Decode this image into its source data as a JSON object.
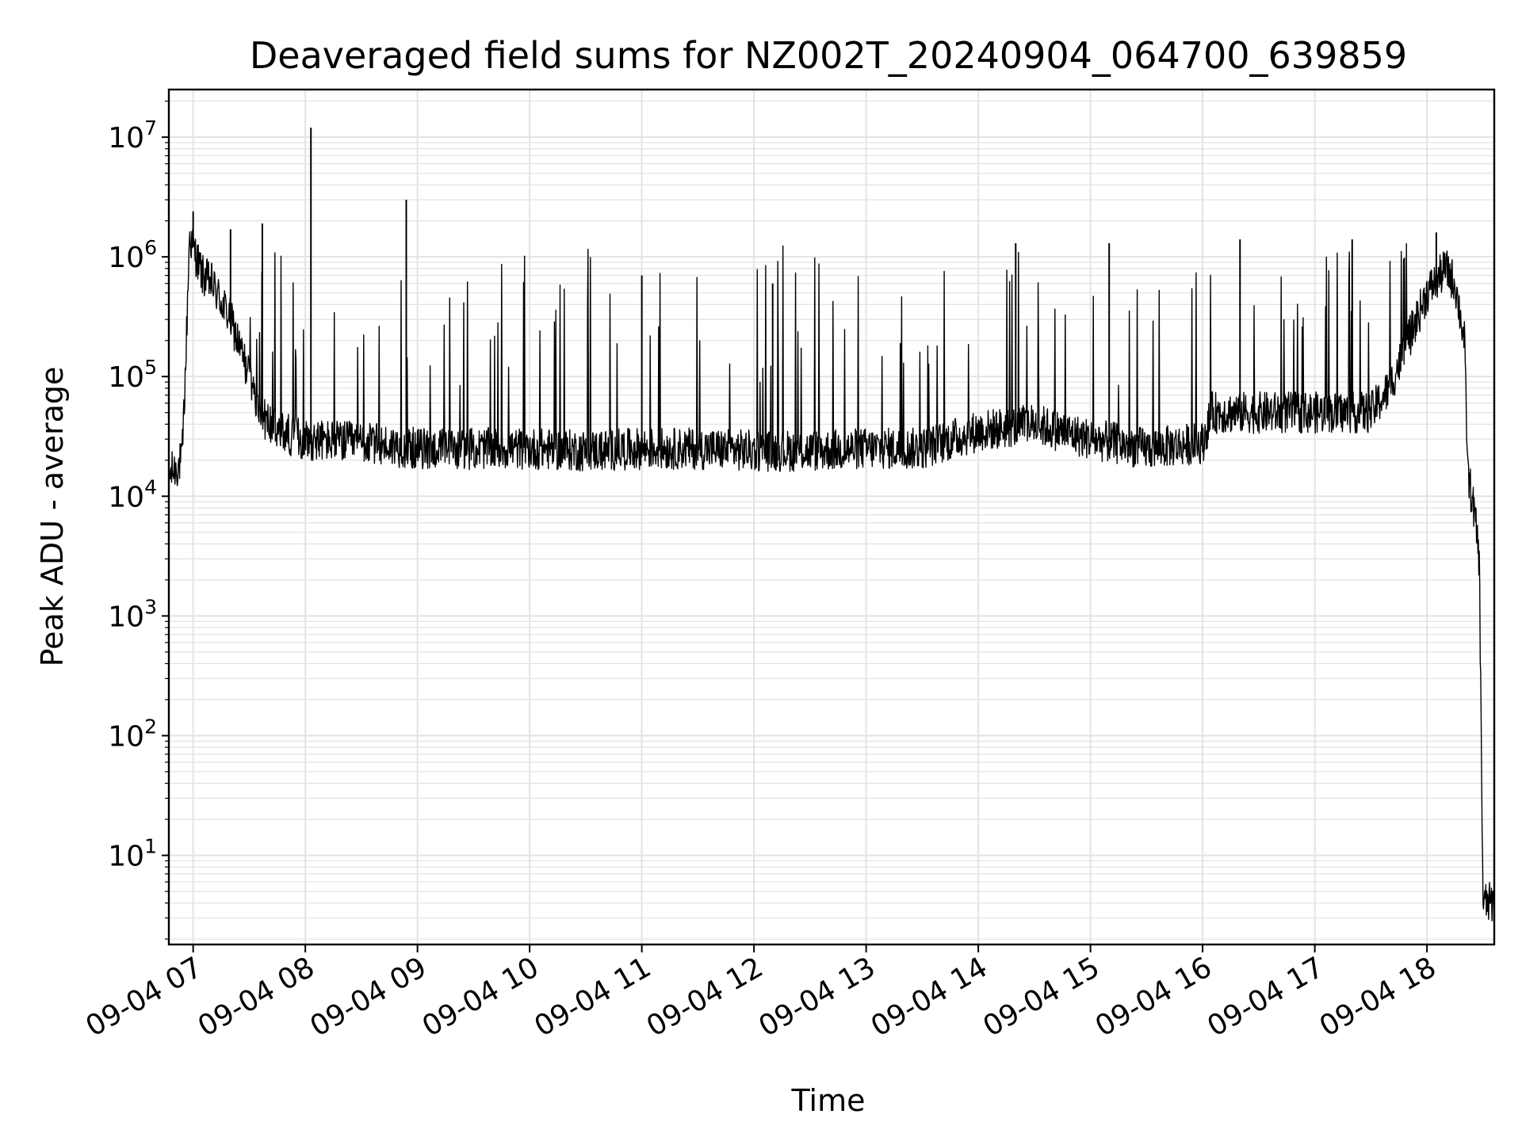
{
  "chart_data": {
    "type": "line",
    "title": "Deaveraged field sums for NZ002T_20240904_064700_639859",
    "xlabel": "Time",
    "ylabel": "Peak ADU - average",
    "yscale": "log",
    "ylim": [
      1.8,
      25000000
    ],
    "xlim": [
      "09-04 06:47",
      "09-04 18:36"
    ],
    "grid": true,
    "line_color": "#000000",
    "grid_color": "#e3e3e3",
    "x_ticks": [
      "09-04 07",
      "09-04 08",
      "09-04 09",
      "09-04 10",
      "09-04 11",
      "09-04 12",
      "09-04 13",
      "09-04 14",
      "09-04 15",
      "09-04 16",
      "09-04 17",
      "09-04 18"
    ],
    "y_ticks": [
      {
        "base": "10",
        "exp": "1",
        "value": 10
      },
      {
        "base": "10",
        "exp": "2",
        "value": 100
      },
      {
        "base": "10",
        "exp": "3",
        "value": 1000
      },
      {
        "base": "10",
        "exp": "4",
        "value": 10000
      },
      {
        "base": "10",
        "exp": "5",
        "value": 100000
      },
      {
        "base": "10",
        "exp": "6",
        "value": 1000000
      },
      {
        "base": "10",
        "exp": "7",
        "value": 10000000
      }
    ],
    "series": [
      {
        "values_note": "baseline (approximate trend of the noisy trace)",
        "x": [
          "09-04 06:47",
          "09-04 06:52",
          "09-04 06:54",
          "09-04 06:56",
          "09-04 06:58",
          "09-04 07:00",
          "09-04 07:05",
          "09-04 07:10",
          "09-04 07:20",
          "09-04 07:30",
          "09-04 07:35",
          "09-04 07:45",
          "09-04 08:00",
          "09-04 08:30",
          "09-04 09:00",
          "09-04 09:30",
          "09-04 10:00",
          "09-04 10:30",
          "09-04 11:00",
          "09-04 11:30",
          "09-04 12:00",
          "09-04 12:30",
          "09-04 13:00",
          "09-04 13:30",
          "09-04 14:00",
          "09-04 14:30",
          "09-04 15:00",
          "09-04 15:30",
          "09-04 16:00",
          "09-04 16:05",
          "09-04 16:30",
          "09-04 17:00",
          "09-04 17:30",
          "09-04 17:40",
          "09-04 17:50",
          "09-04 18:00",
          "09-04 18:10",
          "09-04 18:15",
          "09-04 18:20",
          "09-04 18:22",
          "09-04 18:25",
          "09-04 18:28",
          "09-04 18:30",
          "09-04 18:31",
          "09-04 18:36"
        ],
        "y": [
          15000,
          18000,
          20000,
          120000,
          1500000,
          1200000,
          700000,
          600000,
          300000,
          100000,
          50000,
          35000,
          30000,
          28000,
          25000,
          25000,
          25000,
          24000,
          25000,
          25000,
          24000,
          24000,
          25000,
          25000,
          35000,
          40000,
          30000,
          25000,
          28000,
          50000,
          50000,
          50000,
          50000,
          80000,
          200000,
          500000,
          800000,
          600000,
          200000,
          15000,
          8000,
          3000,
          4,
          4,
          4
        ]
      },
      {
        "values_note": "prominent spikes",
        "x": [
          "09-04 07:00",
          "09-04 07:20",
          "09-04 07:37",
          "09-04 08:03",
          "09-04 08:54",
          "09-04 11:00",
          "09-04 12:10",
          "09-04 14:20",
          "09-04 15:10",
          "09-04 16:20",
          "09-04 17:20",
          "09-04 18:05"
        ],
        "y": [
          2400000,
          1700000,
          1900000,
          12000000,
          3000000,
          700000,
          600000,
          1300000,
          1300000,
          1400000,
          1400000,
          1600000
        ]
      }
    ]
  }
}
